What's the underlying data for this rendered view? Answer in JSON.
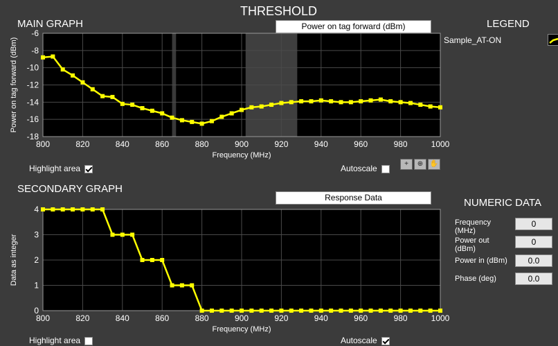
{
  "window": {
    "title": "THRESHOLD"
  },
  "main_graph": {
    "heading": "MAIN GRAPH",
    "plot_label": "Power on tag forward (dBm)",
    "highlight_label": "Highlight area",
    "highlight_checked": true,
    "autoscale_label": "Autoscale",
    "autoscale_checked": false,
    "tools": [
      "crosshair-icon",
      "zoom-icon",
      "pan-hand-icon"
    ]
  },
  "legend": {
    "heading": "LEGEND",
    "items": [
      {
        "name": "Sample_AT-ON",
        "color": "#ffff00"
      }
    ]
  },
  "secondary_graph": {
    "heading": "SECONDARY GRAPH",
    "plot_label": "Response Data",
    "highlight_label": "Highlight area",
    "highlight_checked": false,
    "autoscale_label": "Autoscale",
    "autoscale_checked": true
  },
  "numeric_data": {
    "heading": "NUMERIC DATA",
    "rows": [
      {
        "label": "Frequency (MHz)",
        "value": "0"
      },
      {
        "label": "Power out (dBm)",
        "value": "0"
      },
      {
        "label": "Power in (dBm)",
        "value": "0.0"
      },
      {
        "label": "Phase (deg)",
        "value": "0.0"
      }
    ]
  },
  "chart_data": [
    {
      "type": "line",
      "title": "",
      "xlabel": "Frequency (MHz)",
      "ylabel": "Power on tag forward (dBm)",
      "xlim": [
        800,
        1000
      ],
      "ylim": [
        -18,
        -6
      ],
      "x_ticks": [
        800,
        820,
        840,
        860,
        880,
        900,
        920,
        940,
        960,
        980,
        1000
      ],
      "y_ticks": [
        -6,
        -8,
        -10,
        -12,
        -14,
        -16,
        -18
      ],
      "grid": true,
      "highlight_bands": [
        {
          "x_from": 865,
          "x_to": 867,
          "color": "#3a3a3a"
        },
        {
          "x_from": 902,
          "x_to": 928,
          "color": "#3f3f3f"
        }
      ],
      "series": [
        {
          "name": "Sample_AT-ON",
          "color": "#ffff00",
          "x": [
            800,
            805,
            810,
            815,
            820,
            825,
            830,
            835,
            840,
            845,
            850,
            855,
            860,
            865,
            870,
            875,
            880,
            885,
            890,
            895,
            900,
            905,
            910,
            915,
            920,
            925,
            930,
            935,
            940,
            945,
            950,
            955,
            960,
            965,
            970,
            975,
            980,
            985,
            990,
            995,
            1000
          ],
          "y": [
            -8.8,
            -8.7,
            -10.2,
            -10.9,
            -11.7,
            -12.5,
            -13.3,
            -13.4,
            -14.2,
            -14.3,
            -14.7,
            -15.0,
            -15.3,
            -15.8,
            -16.1,
            -16.3,
            -16.5,
            -16.2,
            -15.7,
            -15.3,
            -14.9,
            -14.6,
            -14.5,
            -14.3,
            -14.1,
            -14.0,
            -13.9,
            -13.9,
            -13.8,
            -13.9,
            -14.0,
            -14.0,
            -13.9,
            -13.8,
            -13.7,
            -13.9,
            -14.0,
            -14.1,
            -14.3,
            -14.5,
            -14.6
          ]
        }
      ]
    },
    {
      "type": "line",
      "title": "",
      "xlabel": "Frequency (MHz)",
      "ylabel": "Data as integer",
      "xlim": [
        800,
        1000
      ],
      "ylim": [
        0,
        4
      ],
      "x_ticks": [
        800,
        820,
        840,
        860,
        880,
        900,
        920,
        940,
        960,
        980,
        1000
      ],
      "y_ticks": [
        4,
        3,
        2,
        1,
        0
      ],
      "grid": true,
      "series": [
        {
          "name": "Sample_AT-ON",
          "color": "#ffff00",
          "x": [
            800,
            805,
            810,
            815,
            820,
            825,
            830,
            835,
            840,
            845,
            850,
            855,
            860,
            865,
            870,
            875,
            880,
            885,
            890,
            895,
            900,
            905,
            910,
            915,
            920,
            925,
            930,
            935,
            940,
            945,
            950,
            955,
            960,
            965,
            970,
            975,
            980,
            985,
            990,
            995,
            1000
          ],
          "y": [
            4,
            4,
            4,
            4,
            4,
            4,
            4,
            3,
            3,
            3,
            2,
            2,
            2,
            1,
            1,
            1,
            0,
            0,
            0,
            0,
            0,
            0,
            0,
            0,
            0,
            0,
            0,
            0,
            0,
            0,
            0,
            0,
            0,
            0,
            0,
            0,
            0,
            0,
            0,
            0,
            0
          ]
        }
      ]
    }
  ]
}
